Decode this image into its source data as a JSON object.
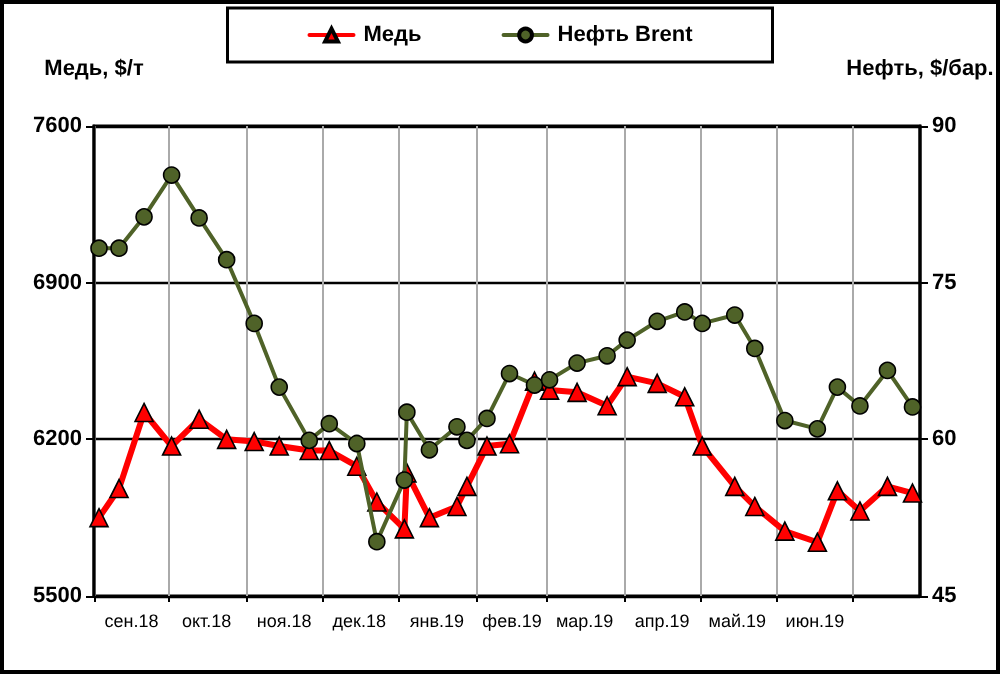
{
  "chart_data": {
    "type": "line",
    "ylabel": "Медь, $/т",
    "y2label": "Нефть, $/бар.",
    "x": [
      "2018-09-03",
      "2018-09-11",
      "2018-09-21",
      "2018-10-02",
      "2018-10-13",
      "2018-10-24",
      "2018-11-04",
      "2018-11-14",
      "2018-11-26",
      "2018-12-04",
      "2018-12-15",
      "2018-12-23",
      "2019-01-03",
      "2019-01-04",
      "2019-01-13",
      "2019-01-24",
      "2019-01-28",
      "2019-02-05",
      "2019-02-14",
      "2019-02-24",
      "2019-03-02",
      "2019-03-13",
      "2019-03-25",
      "2019-04-02",
      "2019-04-14",
      "2019-04-25",
      "2019-05-02",
      "2019-05-15",
      "2019-05-23",
      "2019-06-04",
      "2019-06-17",
      "2019-06-25",
      "2019-07-04",
      "2019-07-15",
      "2019-07-25"
    ],
    "series": [
      {
        "name": "Медь",
        "color": "#ff0000",
        "marker": "triangle",
        "values": [
          5850,
          5980,
          6320,
          6170,
          6290,
          6200,
          6190,
          6170,
          6150,
          6150,
          6080,
          5920,
          5800,
          6050,
          5850,
          5900,
          5990,
          6170,
          6180,
          6460,
          6420,
          6410,
          6350,
          6480,
          6450,
          6390,
          6170,
          5990,
          5900,
          5790,
          5740,
          5970,
          5880,
          5990,
          5960
        ]
      },
      {
        "name": "Нефть Brent",
        "color": "#4f6228",
        "marker": "circle",
        "axis": "y2",
        "values": [
          78.3,
          78.3,
          81.3,
          85.3,
          81.2,
          77.2,
          71.1,
          65.0,
          59.9,
          61.5,
          59.6,
          50.2,
          56.1,
          62.6,
          59.0,
          61.2,
          59.9,
          62.0,
          66.3,
          65.2,
          65.7,
          67.3,
          68.0,
          69.5,
          71.3,
          72.2,
          71.1,
          71.9,
          68.7,
          61.8,
          61.0,
          65.0,
          63.2,
          66.6,
          63.1
        ]
      }
    ],
    "xlim": [
      "2018-09-01",
      "2019-07-28"
    ],
    "xticks": [
      {
        "value": "2018-09-01",
        "label": null
      },
      {
        "value": "2018-09-16",
        "label": "сен.18"
      },
      {
        "value": "2018-10-01",
        "label": null
      },
      {
        "value": "2018-10-16",
        "label": "окт.18"
      },
      {
        "value": "2018-11-01",
        "label": null
      },
      {
        "value": "2018-11-16",
        "label": "ноя.18"
      },
      {
        "value": "2018-12-01",
        "label": null
      },
      {
        "value": "2018-12-16",
        "label": "дек.18"
      },
      {
        "value": "2019-01-01",
        "label": null
      },
      {
        "value": "2019-01-16",
        "label": "янв.19"
      },
      {
        "value": "2019-02-01",
        "label": null
      },
      {
        "value": "2019-02-15",
        "label": "фев.19"
      },
      {
        "value": "2019-03-01",
        "label": null
      },
      {
        "value": "2019-03-16",
        "label": "мар.19"
      },
      {
        "value": "2019-04-01",
        "label": null
      },
      {
        "value": "2019-04-16",
        "label": "апр.19"
      },
      {
        "value": "2019-05-01",
        "label": null
      },
      {
        "value": "2019-05-16",
        "label": "май.19"
      },
      {
        "value": "2019-06-01",
        "label": null
      },
      {
        "value": "2019-06-16",
        "label": "июн.19"
      },
      {
        "value": "2019-07-01",
        "label": null
      }
    ],
    "ylim": [
      5500,
      7600
    ],
    "yticks": [
      5500,
      6200,
      6900,
      7600
    ],
    "y2lim": [
      45,
      90
    ],
    "y2ticks": [
      45,
      60,
      75,
      90
    ],
    "grid": true,
    "legend": "top"
  }
}
